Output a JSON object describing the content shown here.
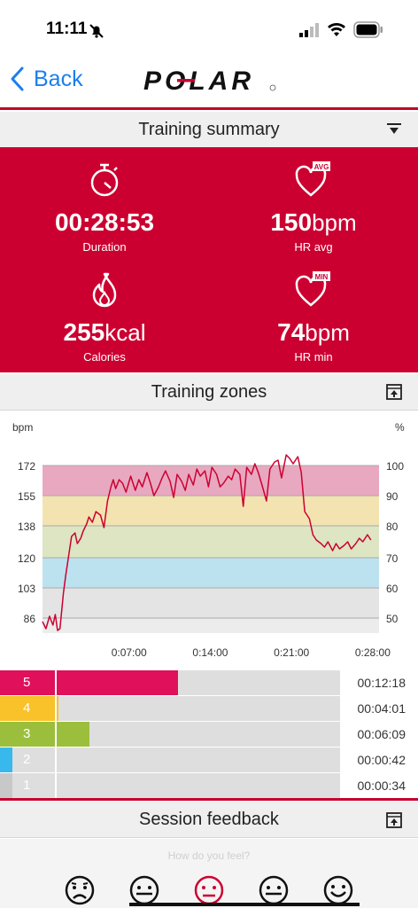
{
  "status_bar": {
    "time": "11:11"
  },
  "nav": {
    "back_label": "Back",
    "logo_text": "POLAR"
  },
  "summary": {
    "title": "Training summary",
    "duration": {
      "value": "00:28:53",
      "label": "Duration"
    },
    "hr_avg": {
      "value": "150",
      "unit": "bpm",
      "label": "HR avg",
      "badge": "AVG"
    },
    "calories": {
      "value": "255",
      "unit": "kcal",
      "label": "Calories"
    },
    "hr_min": {
      "value": "74",
      "unit": "bpm",
      "label": "HR min",
      "badge": "MIN"
    }
  },
  "zones_section": {
    "title": "Training zones"
  },
  "chart_data": {
    "type": "line",
    "ylabel_left": "bpm",
    "ylabel_right": "%",
    "y_ticks_left": [
      "172",
      "155",
      "138",
      "120",
      "103",
      "86"
    ],
    "y_ticks_right": [
      "100",
      "90",
      "80",
      "70",
      "60",
      "50"
    ],
    "x_ticks": [
      "0:07:00",
      "0:14:00",
      "0:21:00",
      "0:28:00"
    ],
    "ylim": [
      78,
      185
    ],
    "xlim": [
      0,
      29
    ],
    "zone_bands": [
      {
        "zone": 5,
        "from": 155,
        "to": 172,
        "color": "#e8a8c0"
      },
      {
        "zone": 4,
        "from": 138,
        "to": 155,
        "color": "#f3e3b0"
      },
      {
        "zone": 3,
        "from": 120,
        "to": 138,
        "color": "#dde5c2"
      },
      {
        "zone": 2,
        "from": 103,
        "to": 120,
        "color": "#bde2ef"
      },
      {
        "zone": 1,
        "from": 86,
        "to": 103,
        "color": "#e4e4e4"
      }
    ],
    "series": [
      {
        "x": [
          0,
          0.3,
          0.6,
          0.9,
          1.1,
          1.3,
          1.5,
          1.8,
          2.0,
          2.3,
          2.5,
          2.8,
          3.0,
          3.3,
          3.5,
          3.8,
          4.0,
          4.3,
          4.6,
          5.0,
          5.3,
          5.6,
          5.9,
          6.1,
          6.3,
          6.6,
          6.9,
          7.2,
          7.6,
          8.0,
          8.3,
          8.6,
          9.0,
          9.3,
          9.6,
          10.0,
          10.3,
          10.6,
          11.0,
          11.3,
          11.6,
          12.0,
          12.3,
          12.6,
          13.0,
          13.3,
          13.6,
          14.0,
          14.3,
          14.6,
          15.0,
          15.3,
          15.6,
          16.0,
          16.3,
          16.6,
          17.0,
          17.3,
          17.6,
          18.0,
          18.3,
          18.6,
          19.0,
          19.3,
          19.6,
          20.0,
          20.3,
          20.6,
          21.0,
          21.3,
          21.6,
          22.0,
          22.3,
          22.6,
          23.0,
          23.3,
          23.6,
          24.0,
          24.3,
          24.6,
          25.0,
          25.3,
          25.6,
          26.0,
          26.3,
          26.6,
          27.0,
          27.3,
          27.6,
          28.0,
          28.3
        ],
        "y": [
          84,
          80,
          87,
          82,
          88,
          79,
          80,
          100,
          110,
          123,
          132,
          134,
          128,
          131,
          135,
          139,
          143,
          140,
          146,
          144,
          137,
          152,
          160,
          164,
          159,
          164,
          162,
          157,
          166,
          158,
          164,
          160,
          168,
          162,
          155,
          160,
          165,
          169,
          163,
          154,
          167,
          163,
          158,
          167,
          161,
          170,
          166,
          169,
          160,
          171,
          167,
          160,
          162,
          166,
          164,
          170,
          167,
          149,
          171,
          167,
          173,
          168,
          159,
          152,
          170,
          174,
          175,
          165,
          178,
          176,
          173,
          177,
          168,
          146,
          142,
          133,
          130,
          128,
          126,
          129,
          124,
          128,
          125,
          127,
          129,
          125,
          128,
          131,
          129,
          133,
          130
        ]
      }
    ]
  },
  "zone_bars": [
    {
      "zone": "5",
      "time": "00:12:18",
      "fraction": 0.425,
      "color": "#e0105a"
    },
    {
      "zone": "4",
      "time": "00:04:01",
      "fraction": 0.14,
      "color": "#f9c12a"
    },
    {
      "zone": "3",
      "time": "00:06:09",
      "fraction": 0.213,
      "color": "#9bbf3c"
    },
    {
      "zone": "2",
      "time": "00:00:42",
      "fraction": 0.024,
      "color": "#38b8ec"
    },
    {
      "zone": "1",
      "time": "00:00:34",
      "fraction": 0.02,
      "color": "#c8c8c8"
    }
  ],
  "feedback": {
    "title": "Session feedback",
    "prompt": "How do you feel?"
  },
  "colors": {
    "accent": "#cc0030",
    "link": "#1a7ff0"
  }
}
